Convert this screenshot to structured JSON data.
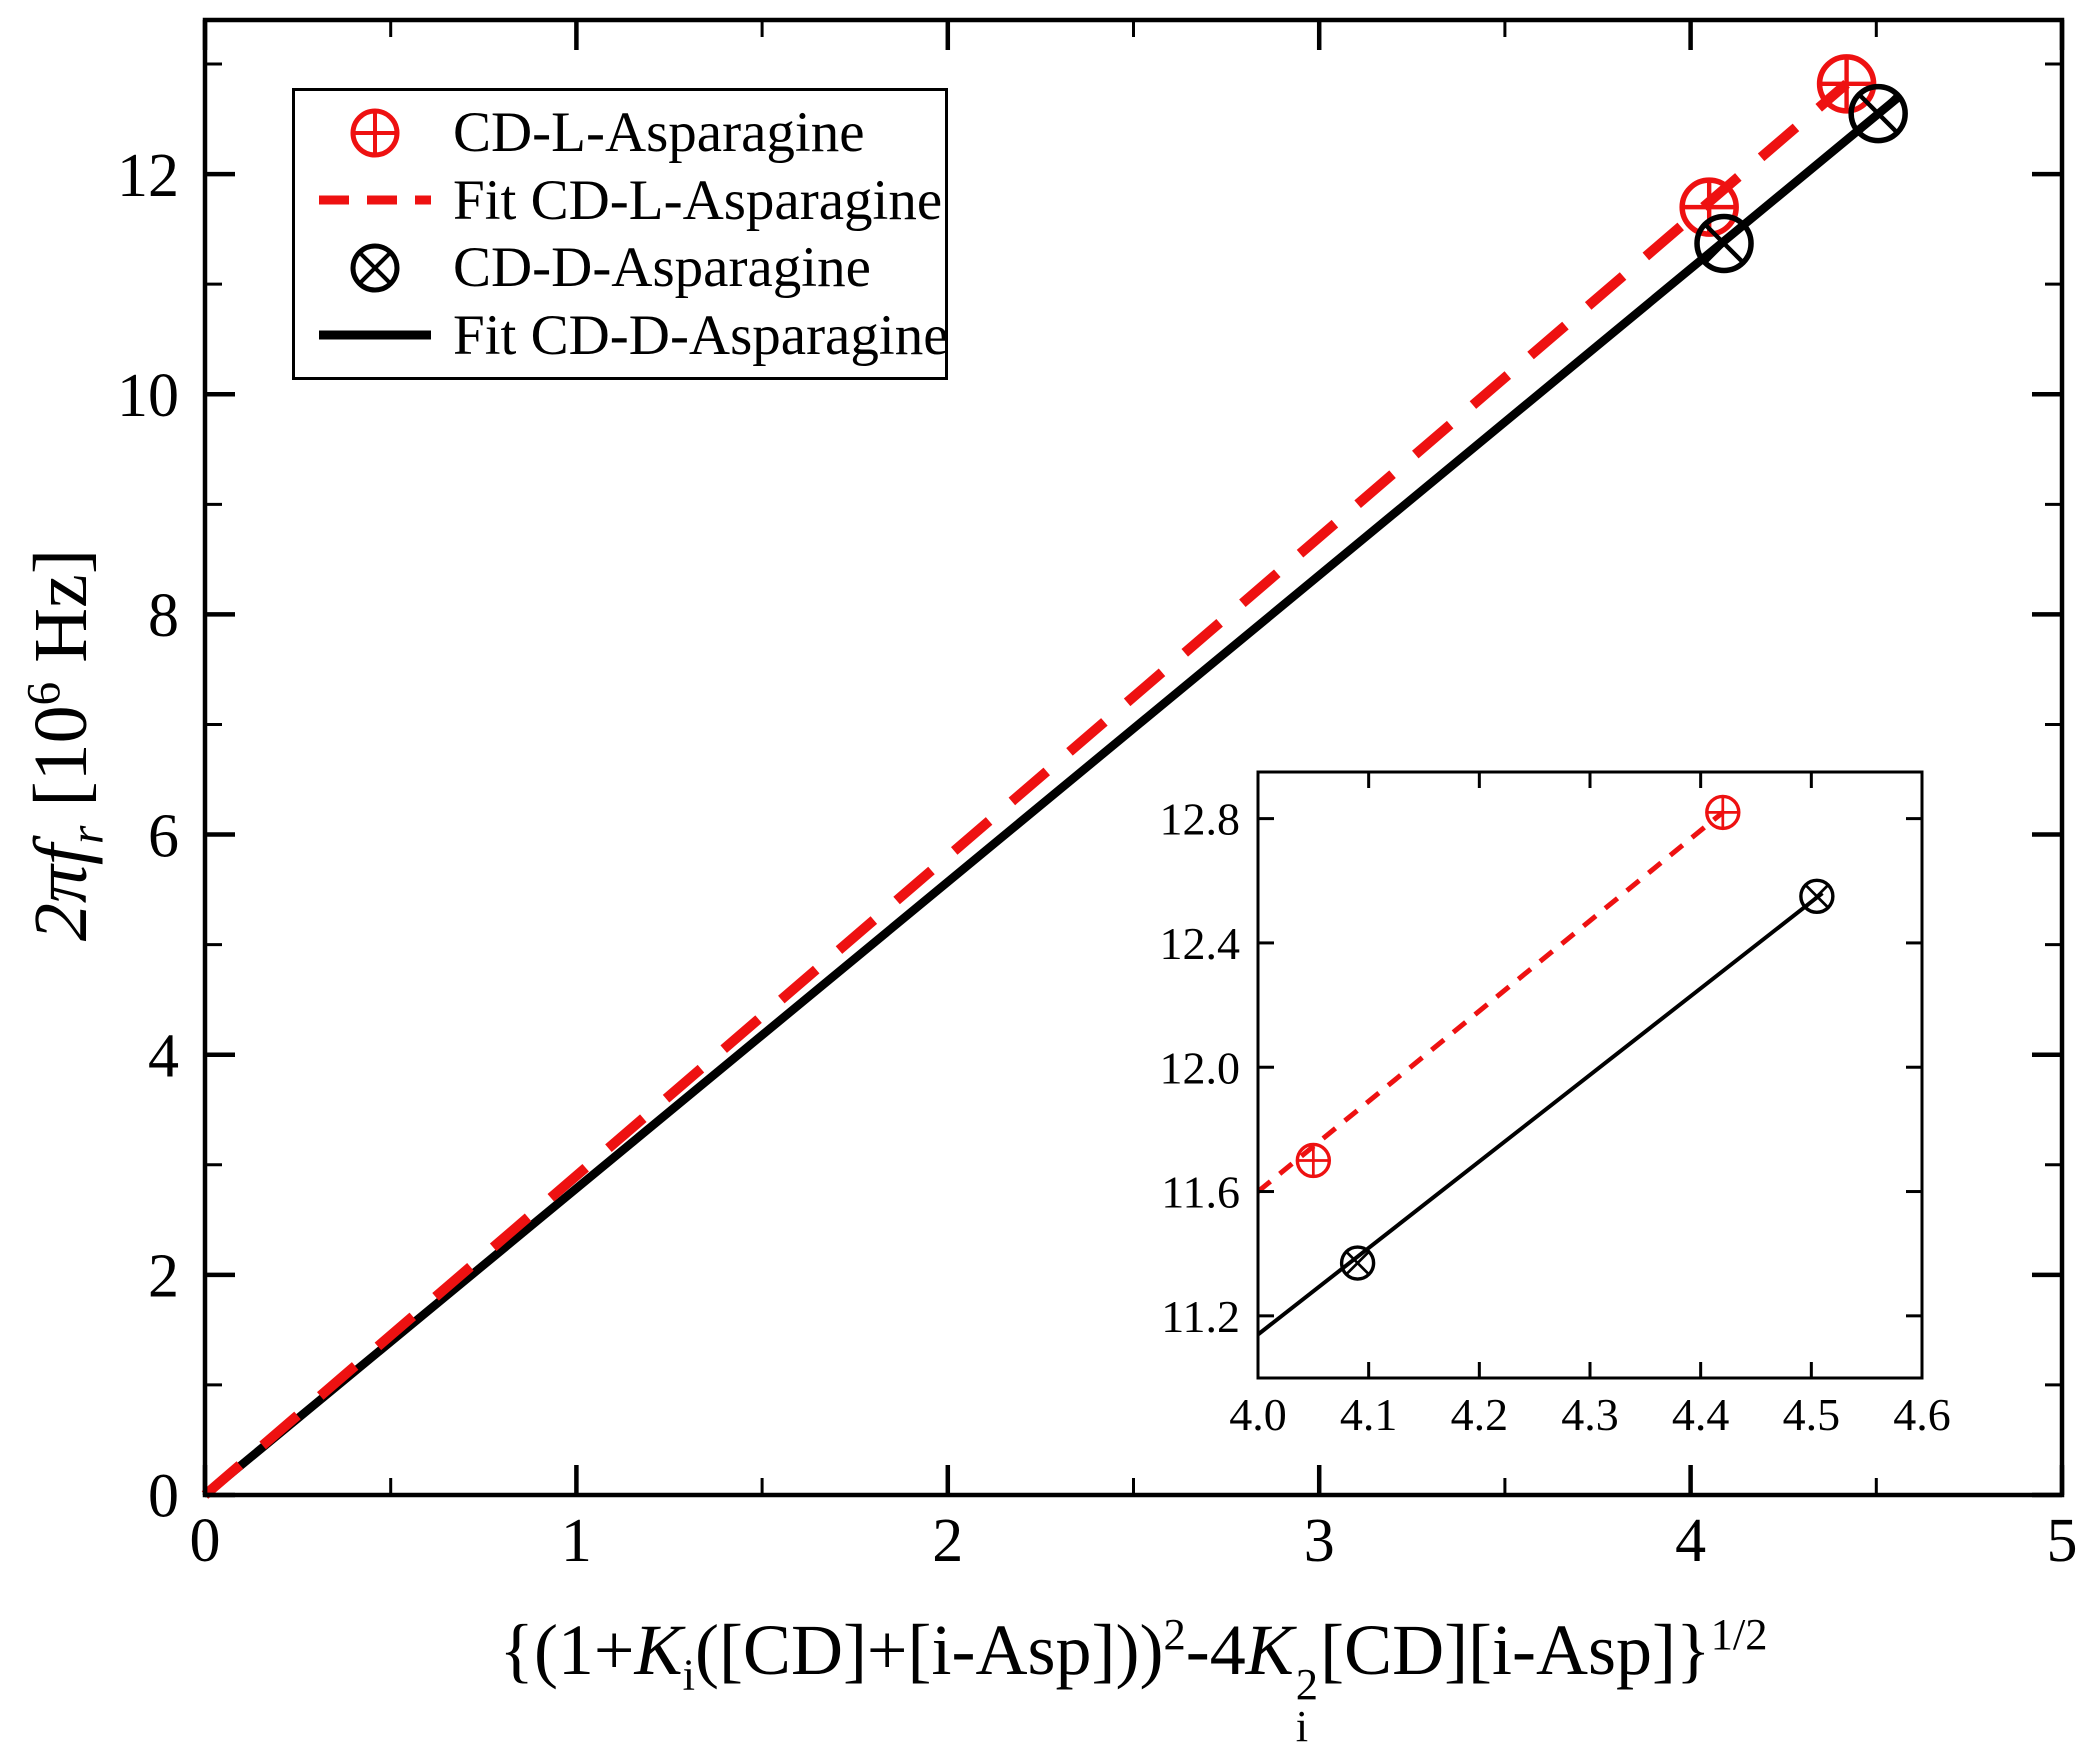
{
  "colors": {
    "red": "#ee1111",
    "black": "#000000",
    "frame": "#000000",
    "background": "#ffffff"
  },
  "legend": {
    "items": [
      {
        "label": "CD-L-Asparagine",
        "marker": "circle-plus",
        "color": "red"
      },
      {
        "label": "Fit CD-L-Asparagine",
        "marker": "dashed-line",
        "color": "red"
      },
      {
        "label": "CD-D-Asparagine",
        "marker": "circle-x",
        "color": "black"
      },
      {
        "label": "Fit CD-D-Asparagine",
        "marker": "solid-line",
        "color": "black"
      }
    ]
  },
  "chart_data": {
    "type": "scatter",
    "title": "",
    "xlabel_parts": [
      {
        "t": "{(1+",
        "s": "n"
      },
      {
        "t": "K",
        "s": "i"
      },
      {
        "t": "i",
        "s": "sub"
      },
      {
        "t": "([CD]+[i-Asp]))",
        "s": "n"
      },
      {
        "t": "2",
        "s": "sup"
      },
      {
        "t": "-4",
        "s": "n"
      },
      {
        "t": "K",
        "s": "i"
      },
      {
        "sup": "2",
        "sub": "i",
        "s": "ss"
      },
      {
        "t": "[CD][i-Asp]}",
        "s": "n"
      },
      {
        "t": "1/2",
        "s": "sup"
      }
    ],
    "ylabel_parts": [
      {
        "t": "2πf",
        "s": "i"
      },
      {
        "t": "r",
        "s": "subi"
      },
      {
        "t": "  [10",
        "s": "n"
      },
      {
        "t": "6",
        "s": "sup"
      },
      {
        "t": " Hz]",
        "s": "n"
      }
    ],
    "main": {
      "xlim": [
        0,
        5
      ],
      "ylim": [
        0,
        13.4
      ],
      "x_ticks": [
        {
          "v": 0,
          "l": "0"
        },
        {
          "v": 1,
          "l": "1"
        },
        {
          "v": 2,
          "l": "2"
        },
        {
          "v": 3,
          "l": "3"
        },
        {
          "v": 4,
          "l": "4"
        },
        {
          "v": 5,
          "l": "5"
        }
      ],
      "x_minor": [
        0.5,
        1.5,
        2.5,
        3.5,
        4.5
      ],
      "y_ticks": [
        {
          "v": 0,
          "l": "0"
        },
        {
          "v": 2,
          "l": "2"
        },
        {
          "v": 4,
          "l": "4"
        },
        {
          "v": 6,
          "l": "6"
        },
        {
          "v": 8,
          "l": "8"
        },
        {
          "v": 10,
          "l": "10"
        },
        {
          "v": 12,
          "l": "12"
        }
      ],
      "y_minor": [
        1,
        3,
        5,
        7,
        9,
        11,
        13
      ],
      "series": [
        {
          "name": "Fit CD-D-Asparagine",
          "kind": "line",
          "dash": false,
          "color": "black",
          "points": [
            [
              0,
              0
            ],
            [
              4.56,
              12.7
            ]
          ]
        },
        {
          "name": "Fit CD-L-Asparagine",
          "kind": "line",
          "dash": true,
          "color": "red",
          "points": [
            [
              0,
              0
            ],
            [
              4.42,
              12.82
            ]
          ]
        },
        {
          "name": "CD-L-Asparagine",
          "kind": "scatter",
          "marker": "circle-plus",
          "color": "red",
          "points": [
            [
              4.05,
              11.7
            ],
            [
              4.42,
              12.82
            ]
          ]
        },
        {
          "name": "CD-D-Asparagine",
          "kind": "scatter",
          "marker": "circle-x",
          "color": "black",
          "points": [
            [
              4.09,
              11.37
            ],
            [
              4.505,
              12.55
            ]
          ]
        }
      ]
    },
    "inset": {
      "xlim": [
        4.0,
        4.6
      ],
      "ylim": [
        11.0,
        12.95
      ],
      "x_ticks": [
        {
          "v": 4.0,
          "l": "4.0"
        },
        {
          "v": 4.1,
          "l": "4.1"
        },
        {
          "v": 4.2,
          "l": "4.2"
        },
        {
          "v": 4.3,
          "l": "4.3"
        },
        {
          "v": 4.4,
          "l": "4.4"
        },
        {
          "v": 4.5,
          "l": "4.5"
        },
        {
          "v": 4.6,
          "l": "4.6"
        }
      ],
      "x_minor": [],
      "y_ticks": [
        {
          "v": 11.2,
          "l": "11.2"
        },
        {
          "v": 11.6,
          "l": "11.6"
        },
        {
          "v": 12.0,
          "l": "12.0"
        },
        {
          "v": 12.4,
          "l": "12.4"
        },
        {
          "v": 12.8,
          "l": "12.8"
        }
      ],
      "y_minor": [],
      "series": [
        {
          "name": "Fit CD-D-Asparagine",
          "kind": "line",
          "dash": false,
          "color": "black",
          "points": [
            [
              4.0,
              11.14
            ],
            [
              4.51,
              12.56
            ]
          ]
        },
        {
          "name": "Fit CD-L-Asparagine",
          "kind": "line",
          "dash": true,
          "color": "red",
          "points": [
            [
              4.0,
              11.6
            ],
            [
              4.42,
              12.82
            ]
          ]
        },
        {
          "name": "CD-L-Asparagine",
          "kind": "scatter",
          "marker": "circle-plus",
          "color": "red",
          "points": [
            [
              4.05,
              11.7
            ],
            [
              4.42,
              12.82
            ]
          ]
        },
        {
          "name": "CD-D-Asparagine",
          "kind": "scatter",
          "marker": "circle-x",
          "color": "black",
          "points": [
            [
              4.09,
              11.37
            ],
            [
              4.505,
              12.55
            ]
          ]
        }
      ]
    }
  }
}
